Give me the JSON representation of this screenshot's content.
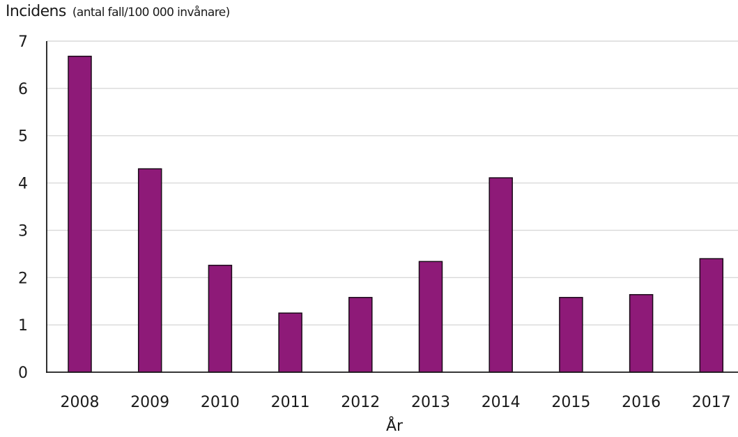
{
  "chart_data": {
    "type": "bar",
    "title": "",
    "ylabel": "Incidens",
    "ylabel_unit": "(antal fall/100 000 invånare)",
    "xlabel": "År",
    "categories": [
      "2008",
      "2009",
      "2010",
      "2011",
      "2012",
      "2013",
      "2014",
      "2015",
      "2016",
      "2017"
    ],
    "values": [
      6.68,
      4.3,
      2.26,
      1.25,
      1.58,
      2.34,
      4.11,
      1.58,
      1.64,
      2.4
    ],
    "ylim": [
      0,
      7
    ],
    "yticks": [
      "0",
      "1",
      "2",
      "3",
      "4",
      "5",
      "6",
      "7"
    ],
    "grid": true,
    "legend": "none",
    "colors": {
      "bar_fill": "#8e1a78",
      "bar_stroke": "#1a0a18",
      "grid": "#d9d9d9",
      "axis": "#1a1a1a"
    }
  }
}
